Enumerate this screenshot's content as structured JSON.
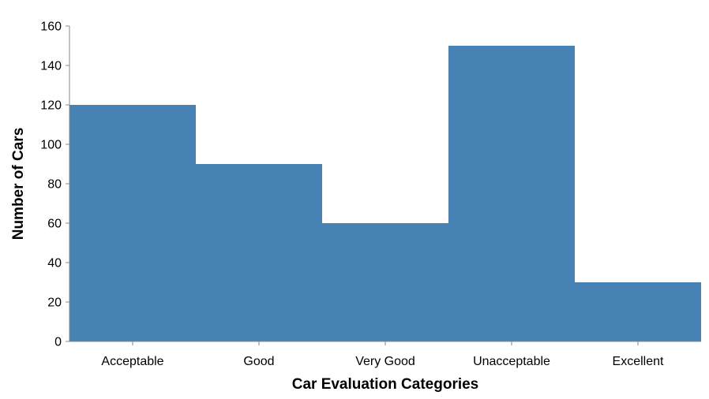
{
  "chart_data": {
    "type": "bar",
    "categories": [
      "Acceptable",
      "Good",
      "Very Good",
      "Unacceptable",
      "Excellent"
    ],
    "values": [
      120,
      90,
      60,
      150,
      30
    ],
    "xlabel": "Car Evaluation Categories",
    "ylabel": "Number of Cars",
    "ylim": [
      0,
      160
    ],
    "yticks": [
      0,
      20,
      40,
      60,
      80,
      100,
      120,
      140,
      160
    ],
    "bar_color": "#4682b4",
    "grid": false
  }
}
